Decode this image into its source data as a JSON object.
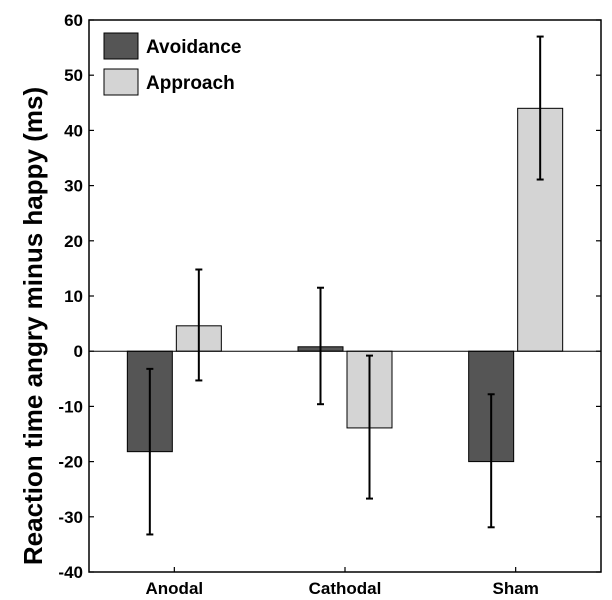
{
  "chart_data": {
    "type": "bar",
    "title": "",
    "xlabel": "",
    "ylabel": "Reaction time angry minus happy (ms)",
    "ylim": [
      -40,
      60
    ],
    "yticks": [
      -40,
      -30,
      -20,
      -10,
      0,
      10,
      20,
      30,
      40,
      50,
      60
    ],
    "categories": [
      "Anodal",
      "Cathodal",
      "Sham"
    ],
    "series": [
      {
        "name": "Avoidance",
        "color": "#555555",
        "values": [
          -18.2,
          0.8,
          -20.0
        ],
        "error_low": [
          -33.2,
          -9.6,
          -31.9
        ],
        "error_high": [
          -3.2,
          11.5,
          -7.8
        ]
      },
      {
        "name": "Approach",
        "color": "#d4d4d4",
        "values": [
          4.6,
          -13.9,
          44.0
        ],
        "error_low": [
          -5.3,
          -26.7,
          31.1
        ],
        "error_high": [
          14.8,
          -0.8,
          57.0
        ]
      }
    ],
    "grid": false,
    "legend_position": "top-left"
  }
}
